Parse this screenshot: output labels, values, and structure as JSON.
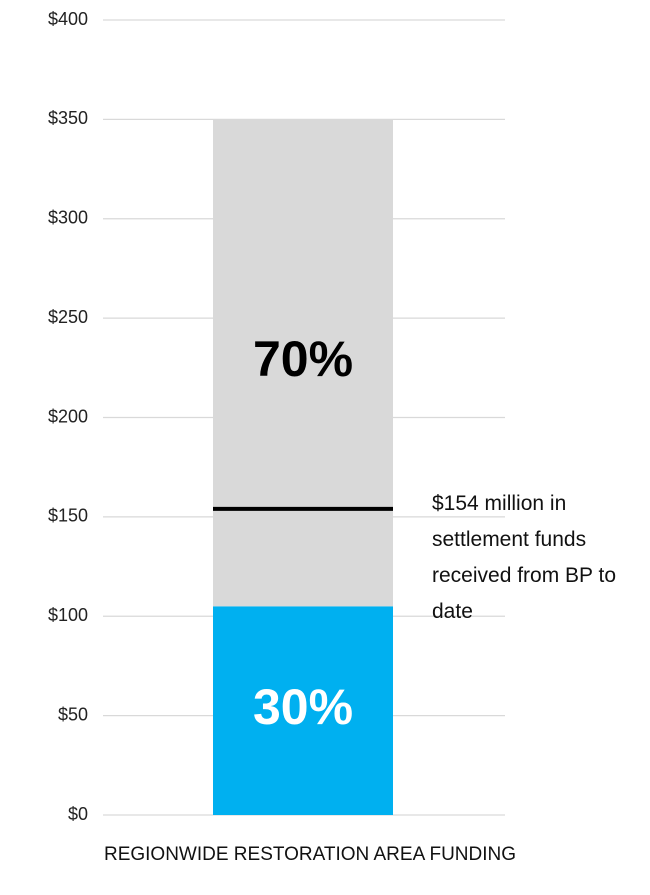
{
  "chart_data": {
    "type": "stacked_bar",
    "categories": [
      "REGIONWIDE RESTORATION AREA FUNDING"
    ],
    "series": [
      {
        "color": "#00b0f0",
        "values": [
          105
        ],
        "value_labels": [
          "30%"
        ],
        "label_color": "#ffffff"
      },
      {
        "color": "#d9d9d9",
        "values": [
          245
        ],
        "value_labels": [
          "70%"
        ],
        "label_color": "#000000"
      }
    ],
    "ylim": [
      0,
      400
    ],
    "yticks": [
      {
        "value": 0,
        "label": "$0"
      },
      {
        "value": 50,
        "label": "$50"
      },
      {
        "value": 100,
        "label": "$100"
      },
      {
        "value": 150,
        "label": "$150"
      },
      {
        "value": 200,
        "label": "$200"
      },
      {
        "value": 250,
        "label": "$250"
      },
      {
        "value": 300,
        "label": "$300"
      },
      {
        "value": 350,
        "label": "$350"
      },
      {
        "value": 400,
        "label": "$400"
      }
    ],
    "grid": true,
    "reference_line": {
      "value": 154,
      "label": "$154 million in settlement funds received from BP to date",
      "color": "#000000"
    }
  }
}
